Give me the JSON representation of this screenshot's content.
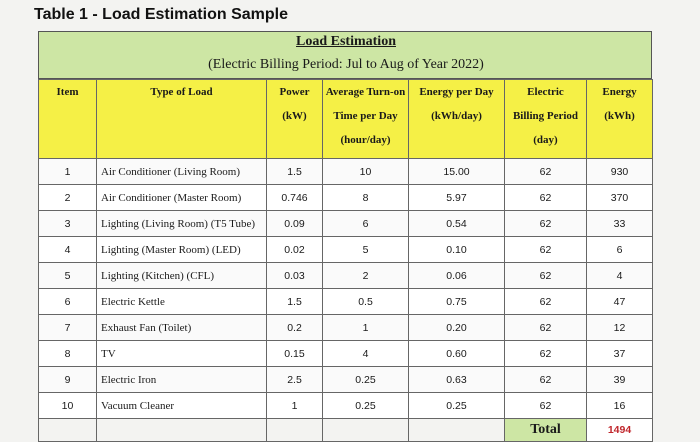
{
  "page_title": "Table 1 - Load Estimation Sample",
  "document": {
    "title": "Load Estimation",
    "subtitle": "(Electric Billing Period: Jul to Aug of Year 2022)"
  },
  "table": {
    "headers": {
      "item": "Item",
      "type": "Type of Load",
      "power_1": "Power",
      "power_2": "(kW)",
      "turnon_1": "Average Turn-on",
      "turnon_2": "Time per Day",
      "turnon_3": "(hour/day)",
      "epd_1": "Energy per Day",
      "epd_2": "(kWh/day)",
      "bp_1": "Electric",
      "bp_2": "Billing Period",
      "bp_3": "(day)",
      "energy_1": "Energy",
      "energy_2": "(kWh)"
    },
    "rows": [
      {
        "item": "1",
        "load": "Air Conditioner (Living Room)",
        "power": "1.5",
        "hours": "10",
        "epd": "15.00",
        "days": "62",
        "energy": "930"
      },
      {
        "item": "2",
        "load": "Air Conditioner (Master Room)",
        "power": "0.746",
        "hours": "8",
        "epd": "5.97",
        "days": "62",
        "energy": "370"
      },
      {
        "item": "3",
        "load": "Lighting (Living Room) (T5 Tube)",
        "power": "0.09",
        "hours": "6",
        "epd": "0.54",
        "days": "62",
        "energy": "33"
      },
      {
        "item": "4",
        "load": "Lighting (Master Room) (LED)",
        "power": "0.02",
        "hours": "5",
        "epd": "0.10",
        "days": "62",
        "energy": "6"
      },
      {
        "item": "5",
        "load": "Lighting (Kitchen) (CFL)",
        "power": "0.03",
        "hours": "2",
        "epd": "0.06",
        "days": "62",
        "energy": "4"
      },
      {
        "item": "6",
        "load": "Electric Kettle",
        "power": "1.5",
        "hours": "0.5",
        "epd": "0.75",
        "days": "62",
        "energy": "47"
      },
      {
        "item": "7",
        "load": "Exhaust Fan (Toilet)",
        "power": "0.2",
        "hours": "1",
        "epd": "0.20",
        "days": "62",
        "energy": "12"
      },
      {
        "item": "8",
        "load": "TV",
        "power": "0.15",
        "hours": "4",
        "epd": "0.60",
        "days": "62",
        "energy": "37"
      },
      {
        "item": "9",
        "load": "Electric Iron",
        "power": "2.5",
        "hours": "0.25",
        "epd": "0.63",
        "days": "62",
        "energy": "39"
      },
      {
        "item": "10",
        "load": "Vacuum Cleaner",
        "power": "1",
        "hours": "0.25",
        "epd": "0.25",
        "days": "62",
        "energy": "16"
      }
    ],
    "total_label": "Total",
    "total_value": "1494"
  },
  "colors": {
    "header_yellow": "#f5f046",
    "title_green": "#cde6a4",
    "total_red": "#c0262b"
  }
}
